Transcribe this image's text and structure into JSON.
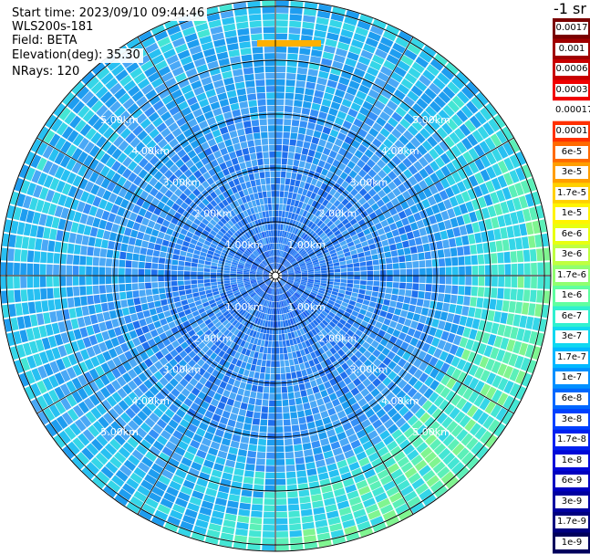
{
  "info": {
    "start_time": "Start time: 2023/09/10 09:44:46",
    "instrument": "WLS200s-181",
    "field": "Field: BETA",
    "elevation": "Elevation(deg): 35.30",
    "nrays": "NRays: 120"
  },
  "colorbar": {
    "title": "-1 sr",
    "labels": [
      "0.0017",
      "0.001",
      "0.0006",
      "0.0003",
      "0.00017",
      "0.0001",
      "6e-5",
      "3e-5",
      "1.7e-5",
      "1e-5",
      "6e-6",
      "3e-6",
      "1.7e-6",
      "1e-6",
      "6e-7",
      "3e-7",
      "1.7e-7",
      "1e-7",
      "6e-8",
      "3e-8",
      "1.7e-8",
      "1e-8",
      "6e-9",
      "3e-9",
      "1.7e-9",
      "1e-9"
    ],
    "colors": [
      "#7a0000",
      "#a00000",
      "#c80000",
      "#f00000",
      "#ffffff",
      "#ff3000",
      "#ff6a00",
      "#ff9e00",
      "#ffd000",
      "#fff400",
      "#e8ff10",
      "#c0ff40",
      "#90ff70",
      "#60ffa0",
      "#30f0d0",
      "#10d8f0",
      "#00b8ff",
      "#0090ff",
      "#0068ff",
      "#0040ff",
      "#0020f0",
      "#0008d8",
      "#0000c0",
      "#0000a0",
      "#000080",
      "#00005c"
    ]
  },
  "range_labels": [
    "1.00km",
    "2.00km",
    "3.00km",
    "4.00km",
    "5.00km"
  ],
  "polar": {
    "n_rays": 120,
    "max_range_km": 5.85
  }
}
